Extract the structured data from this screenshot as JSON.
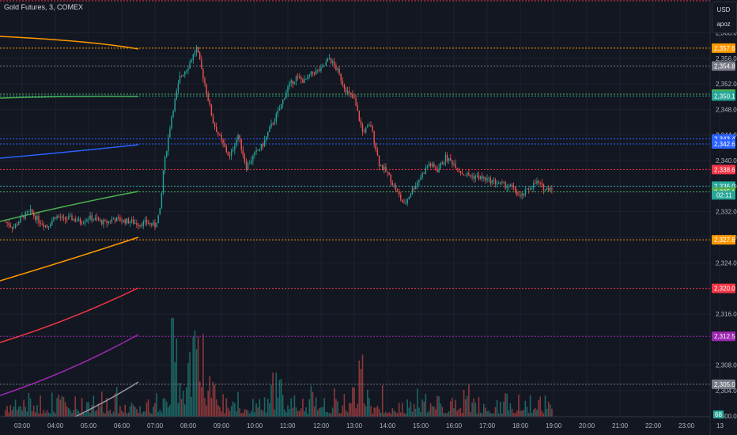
{
  "header": {
    "symbol_title": "Gold Futures, 3, COMEX"
  },
  "controls": {
    "currency": "USD",
    "scale_mode": "apoz"
  },
  "colors": {
    "background": "#131722",
    "grid": "#1e222d",
    "axis_text": "#b2b5be",
    "up": "#26a69a",
    "down": "#ef5350",
    "orange": "#ff9800",
    "green": "#4caf50",
    "blue": "#2962ff",
    "red": "#f23645",
    "purple": "#9c27b0",
    "gray": "#9598a1"
  },
  "chart_data": {
    "type": "candlestick",
    "title": "Gold Futures, 3, COMEX",
    "y_ticks": [
      "2,300.0",
      "2,304.0",
      "2,308.0",
      "2,316.0",
      "2,324.0",
      "2,328.0",
      "2,332.0",
      "2,336.0",
      "2,340.0",
      "2,344.0",
      "2,348.0",
      "2,352.0",
      "2,356.0",
      "2,360.0"
    ],
    "x_ticks": [
      "03:00",
      "04:00",
      "05:00",
      "06:00",
      "07:00",
      "08:00",
      "09:00",
      "10:00",
      "11:00",
      "12:00",
      "13:00",
      "14:00",
      "15:00",
      "16:00",
      "17:00",
      "18:00",
      "19:00",
      "20:00",
      "21:00",
      "22:00",
      "23:00",
      "13"
    ],
    "price_path": [
      [
        "02:30",
        2330.4
      ],
      [
        "02:45",
        2329.5
      ],
      [
        "03:00",
        2331.2
      ],
      [
        "03:15",
        2332.0
      ],
      [
        "03:30",
        2330.6
      ],
      [
        "03:45",
        2329.7
      ],
      [
        "04:00",
        2331.3
      ],
      [
        "04:15",
        2330.8
      ],
      [
        "04:30",
        2331.0
      ],
      [
        "04:45",
        2330.4
      ],
      [
        "05:00",
        2331.1
      ],
      [
        "05:15",
        2330.7
      ],
      [
        "05:30",
        2330.2
      ],
      [
        "05:45",
        2330.9
      ],
      [
        "06:00",
        2330.6
      ],
      [
        "06:15",
        2330.5
      ],
      [
        "06:30",
        2330.1
      ],
      [
        "06:45",
        2330.3
      ],
      [
        "07:00",
        2329.8
      ],
      [
        "07:10",
        2332.4
      ],
      [
        "07:15",
        2338.5
      ],
      [
        "07:30",
        2347.0
      ],
      [
        "07:45",
        2353.0
      ],
      [
        "08:00",
        2354.8
      ],
      [
        "08:15",
        2357.6
      ],
      [
        "08:30",
        2352.0
      ],
      [
        "08:45",
        2346.0
      ],
      [
        "09:00",
        2343.0
      ],
      [
        "09:15",
        2340.5
      ],
      [
        "09:30",
        2344.0
      ],
      [
        "09:45",
        2339.0
      ],
      [
        "10:00",
        2341.0
      ],
      [
        "10:15",
        2342.5
      ],
      [
        "10:30",
        2345.5
      ],
      [
        "10:45",
        2348.0
      ],
      [
        "11:00",
        2351.5
      ],
      [
        "11:15",
        2353.0
      ],
      [
        "11:30",
        2352.4
      ],
      [
        "11:45",
        2353.8
      ],
      [
        "12:00",
        2354.2
      ],
      [
        "12:15",
        2356.0
      ],
      [
        "12:30",
        2354.0
      ],
      [
        "12:45",
        2351.0
      ],
      [
        "13:00",
        2349.5
      ],
      [
        "13:15",
        2344.5
      ],
      [
        "13:30",
        2345.5
      ],
      [
        "13:45",
        2339.5
      ],
      [
        "14:00",
        2338.0
      ],
      [
        "14:15",
        2335.5
      ],
      [
        "14:30",
        2333.0
      ],
      [
        "14:45",
        2335.5
      ],
      [
        "15:00",
        2337.5
      ],
      [
        "15:15",
        2339.5
      ],
      [
        "15:30",
        2338.5
      ],
      [
        "15:45",
        2340.5
      ],
      [
        "16:00",
        2339.5
      ],
      [
        "16:15",
        2338.0
      ],
      [
        "16:30",
        2337.6
      ],
      [
        "16:45",
        2337.4
      ],
      [
        "17:00",
        2337.0
      ],
      [
        "17:15",
        2336.6
      ],
      [
        "17:30",
        2336.2
      ],
      [
        "17:45",
        2335.8
      ],
      [
        "18:00",
        2334.2
      ],
      [
        "18:15",
        2335.6
      ],
      [
        "18:30",
        2336.6
      ],
      [
        "18:45",
        2335.5
      ],
      [
        "19:00",
        2336.0
      ]
    ],
    "levels": [
      {
        "price": 2357.6,
        "label": "2,357.6",
        "color": "#ff9800"
      },
      {
        "price": 2354.8,
        "label": "2,354.8",
        "color": "#787b86"
      },
      {
        "price": 2350.4,
        "label": "2,350.4",
        "color": "#4caf50"
      },
      {
        "price": 2350.1,
        "label": "2,350.1",
        "color": "#26a69a"
      },
      {
        "price": 2343.4,
        "label": "2,343.4",
        "color": "#2962ff"
      },
      {
        "price": 2342.6,
        "label": "2,342.6",
        "color": "#2962ff"
      },
      {
        "price": 2338.6,
        "label": "2,338.6",
        "color": "#f23645"
      },
      {
        "price": 2336.0,
        "label": "2,336.0",
        "color": "#26a69a"
      },
      {
        "price": 2335.1,
        "label": "2,335.1",
        "color": "#4caf50"
      },
      {
        "price": 2327.6,
        "label": "2,327.6",
        "color": "#ff9800"
      },
      {
        "price": 2320.0,
        "label": "2,320.0",
        "color": "#f23645"
      },
      {
        "price": 2312.5,
        "label": "2,312.5",
        "color": "#9c27b0"
      },
      {
        "price": 2305.0,
        "label": "2,305.0",
        "color": "#787b86"
      }
    ],
    "countdown": "02:11",
    "volume_badge": "68"
  }
}
